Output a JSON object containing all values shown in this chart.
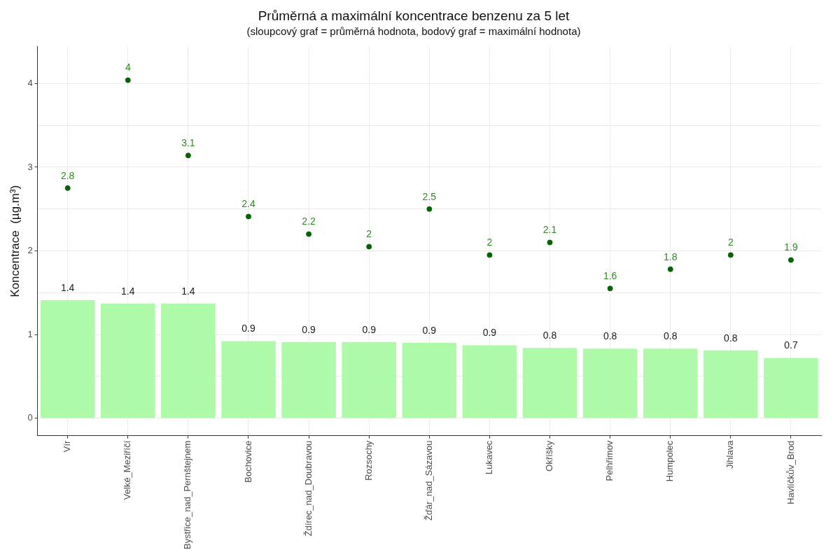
{
  "chart_data": {
    "type": "bar",
    "title": "Průměrná a maximální koncentrace benzenu za 5 let",
    "subtitle": "(sloupcový graf = průměrná hodnota, bodový graf = maximální hodnota)",
    "ylabel": "Koncentrace  (µg.m³)",
    "categories": [
      "Vír",
      "Velké_Meziříčí",
      "Bystřice_nad_Pernštejnem",
      "Bochovice",
      "Ždírec_nad_Doubravou",
      "Rozsochy",
      "Žďár_nad_Sázavou",
      "Lukavec",
      "Okříšky",
      "Pelhřimov",
      "Humpolec",
      "Jihlava",
      "Havlíčkův_Brod"
    ],
    "series": [
      {
        "color": "#aefaa8",
        "values": [
          1.41,
          1.37,
          1.37,
          0.92,
          0.91,
          0.91,
          0.9,
          0.87,
          0.84,
          0.83,
          0.83,
          0.81,
          0.72
        ],
        "value_labels": [
          "1.4",
          "1.4",
          "1.4",
          "0.9",
          "0.9",
          "0.9",
          "0.9",
          "0.9",
          "0.8",
          "0.8",
          "0.8",
          "0.8",
          "0.7"
        ]
      },
      {
        "type": "scatter",
        "color": "#006400",
        "marker": "circle",
        "x": [
          "Vír",
          "Velké_Meziříčí",
          "Bystřice_nad_Pernštejnem",
          "Bochovice",
          "Ždírec_nad_Doubravou",
          "Rozsochy",
          "Žďár_nad_Sázavou",
          "Lukavec",
          "Okříšky",
          "Pelhřimov",
          "Humpolec",
          "Jihlava",
          "Havlíčkův_Brod"
        ],
        "values": [
          2.75,
          4.04,
          3.14,
          2.41,
          2.2,
          2.05,
          2.5,
          1.95,
          2.1,
          1.55,
          1.78,
          1.95,
          1.89
        ],
        "value_labels": [
          "2.8",
          "4",
          "3.1",
          "2.4",
          "2.2",
          "2",
          "2.5",
          "2",
          "2.1",
          "1.6",
          "1.8",
          "2",
          "1.9"
        ]
      }
    ],
    "ylim": [
      -0.21,
      4.44
    ],
    "yticks": [
      0,
      {
        "value": 0.5,
        "label": null
      },
      1,
      {
        "value": 1.5,
        "label": null
      },
      2,
      {
        "value": 2.5,
        "label": null
      },
      3,
      {
        "value": 3.5,
        "label": null
      },
      4
    ],
    "grid": true,
    "legend": false
  }
}
